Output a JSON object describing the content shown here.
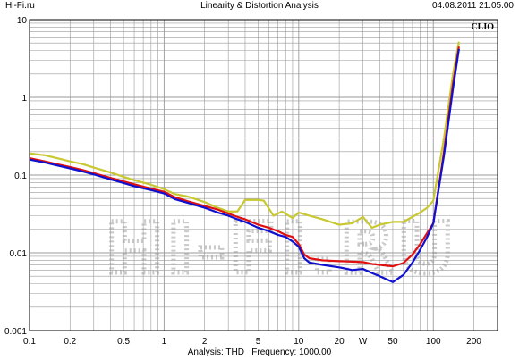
{
  "header": {
    "left": "Hi-Fi.ru",
    "center": "Linearity & Distortion Analysis",
    "right": "04.08.2011 21.05.00"
  },
  "footer": {
    "analysis": "Analysis: THD",
    "frequency": "Frequency: 1000.00"
  },
  "brand": "CLIO",
  "watermark": "HI-FI.RU",
  "colors": {
    "background": "#ffffff",
    "grid": "#9a9a9a",
    "frame": "#000000",
    "series": [
      "#c8c832",
      "#e01010",
      "#1010d0"
    ]
  },
  "chart_data": {
    "type": "line",
    "x_scale": "log",
    "y_scale": "log",
    "xlim": [
      0.1,
      300
    ],
    "ylim": [
      0.001,
      10
    ],
    "x_ticks": [
      {
        "value": 0.1,
        "label": "0.1"
      },
      {
        "value": 0.2,
        "label": "0.2"
      },
      {
        "value": 0.5,
        "label": "0.5"
      },
      {
        "value": 1,
        "label": "1"
      },
      {
        "value": 2,
        "label": "2"
      },
      {
        "value": 5,
        "label": "5"
      },
      {
        "value": 10,
        "label": "10"
      },
      {
        "value": 20,
        "label": "20"
      },
      {
        "value": 30,
        "label": "W"
      },
      {
        "value": 50,
        "label": "50"
      },
      {
        "value": 100,
        "label": "100"
      },
      {
        "value": 200,
        "label": "200"
      }
    ],
    "y_ticks": [
      {
        "value": 10,
        "label": "10"
      },
      {
        "value": 1,
        "label": "1"
      },
      {
        "value": 0.1,
        "label": "0.1"
      },
      {
        "value": 0.01,
        "label": "0.01"
      },
      {
        "value": 0.001,
        "label": "0.001"
      }
    ],
    "grid": true,
    "series": [
      {
        "color": "#c8c832",
        "points": [
          [
            0.1,
            0.19
          ],
          [
            0.13,
            0.18
          ],
          [
            0.16,
            0.165
          ],
          [
            0.2,
            0.15
          ],
          [
            0.25,
            0.138
          ],
          [
            0.3,
            0.125
          ],
          [
            0.4,
            0.108
          ],
          [
            0.5,
            0.095
          ],
          [
            0.6,
            0.086
          ],
          [
            0.8,
            0.075
          ],
          [
            1.0,
            0.066
          ],
          [
            1.2,
            0.057
          ],
          [
            1.5,
            0.053
          ],
          [
            2.0,
            0.045
          ],
          [
            2.5,
            0.038
          ],
          [
            3.0,
            0.034
          ],
          [
            3.5,
            0.034
          ],
          [
            4.0,
            0.048
          ],
          [
            5.0,
            0.048
          ],
          [
            5.5,
            0.047
          ],
          [
            6.5,
            0.03
          ],
          [
            7.5,
            0.034
          ],
          [
            9.0,
            0.028
          ],
          [
            10,
            0.033
          ],
          [
            12,
            0.03
          ],
          [
            15,
            0.027
          ],
          [
            20,
            0.023
          ],
          [
            25,
            0.024
          ],
          [
            30,
            0.029
          ],
          [
            35,
            0.021
          ],
          [
            40,
            0.023
          ],
          [
            50,
            0.025
          ],
          [
            60,
            0.025
          ],
          [
            70,
            0.029
          ],
          [
            80,
            0.033
          ],
          [
            90,
            0.038
          ],
          [
            100,
            0.047
          ],
          [
            120,
            0.3
          ],
          [
            140,
            2.0
          ],
          [
            155,
            5.2
          ]
        ]
      },
      {
        "color": "#e01010",
        "points": [
          [
            0.1,
            0.165
          ],
          [
            0.13,
            0.15
          ],
          [
            0.16,
            0.138
          ],
          [
            0.2,
            0.127
          ],
          [
            0.25,
            0.116
          ],
          [
            0.3,
            0.106
          ],
          [
            0.4,
            0.092
          ],
          [
            0.5,
            0.083
          ],
          [
            0.6,
            0.076
          ],
          [
            0.8,
            0.067
          ],
          [
            1.0,
            0.061
          ],
          [
            1.2,
            0.052
          ],
          [
            1.5,
            0.046
          ],
          [
            2.0,
            0.04
          ],
          [
            2.5,
            0.036
          ],
          [
            3.0,
            0.032
          ],
          [
            3.5,
            0.029
          ],
          [
            4.0,
            0.027
          ],
          [
            5.0,
            0.023
          ],
          [
            6.0,
            0.021
          ],
          [
            7.0,
            0.019
          ],
          [
            8.0,
            0.017
          ],
          [
            9.0,
            0.016
          ],
          [
            10,
            0.013
          ],
          [
            11,
            0.0095
          ],
          [
            12,
            0.0085
          ],
          [
            15,
            0.008
          ],
          [
            20,
            0.0078
          ],
          [
            25,
            0.0077
          ],
          [
            30,
            0.0076
          ],
          [
            35,
            0.0072
          ],
          [
            40,
            0.007
          ],
          [
            50,
            0.0067
          ],
          [
            60,
            0.0074
          ],
          [
            70,
            0.0095
          ],
          [
            80,
            0.013
          ],
          [
            90,
            0.018
          ],
          [
            100,
            0.024
          ],
          [
            120,
            0.2
          ],
          [
            140,
            1.5
          ],
          [
            155,
            4.5
          ]
        ]
      },
      {
        "color": "#1010d0",
        "points": [
          [
            0.1,
            0.158
          ],
          [
            0.13,
            0.145
          ],
          [
            0.16,
            0.133
          ],
          [
            0.2,
            0.122
          ],
          [
            0.25,
            0.111
          ],
          [
            0.3,
            0.102
          ],
          [
            0.4,
            0.088
          ],
          [
            0.5,
            0.079
          ],
          [
            0.6,
            0.072
          ],
          [
            0.8,
            0.064
          ],
          [
            1.0,
            0.058
          ],
          [
            1.2,
            0.049
          ],
          [
            1.5,
            0.044
          ],
          [
            2.0,
            0.038
          ],
          [
            2.5,
            0.033
          ],
          [
            3.0,
            0.03
          ],
          [
            3.5,
            0.027
          ],
          [
            4.0,
            0.025
          ],
          [
            5.0,
            0.021
          ],
          [
            6.0,
            0.019
          ],
          [
            7.0,
            0.017
          ],
          [
            8.0,
            0.016
          ],
          [
            9.0,
            0.014
          ],
          [
            10,
            0.012
          ],
          [
            11,
            0.0085
          ],
          [
            12,
            0.0075
          ],
          [
            15,
            0.007
          ],
          [
            20,
            0.0065
          ],
          [
            25,
            0.006
          ],
          [
            30,
            0.0062
          ],
          [
            35,
            0.0055
          ],
          [
            40,
            0.005
          ],
          [
            50,
            0.0042
          ],
          [
            60,
            0.0052
          ],
          [
            70,
            0.0075
          ],
          [
            80,
            0.011
          ],
          [
            90,
            0.016
          ],
          [
            100,
            0.024
          ],
          [
            120,
            0.18
          ],
          [
            140,
            1.3
          ],
          [
            155,
            4.2
          ]
        ]
      }
    ]
  }
}
